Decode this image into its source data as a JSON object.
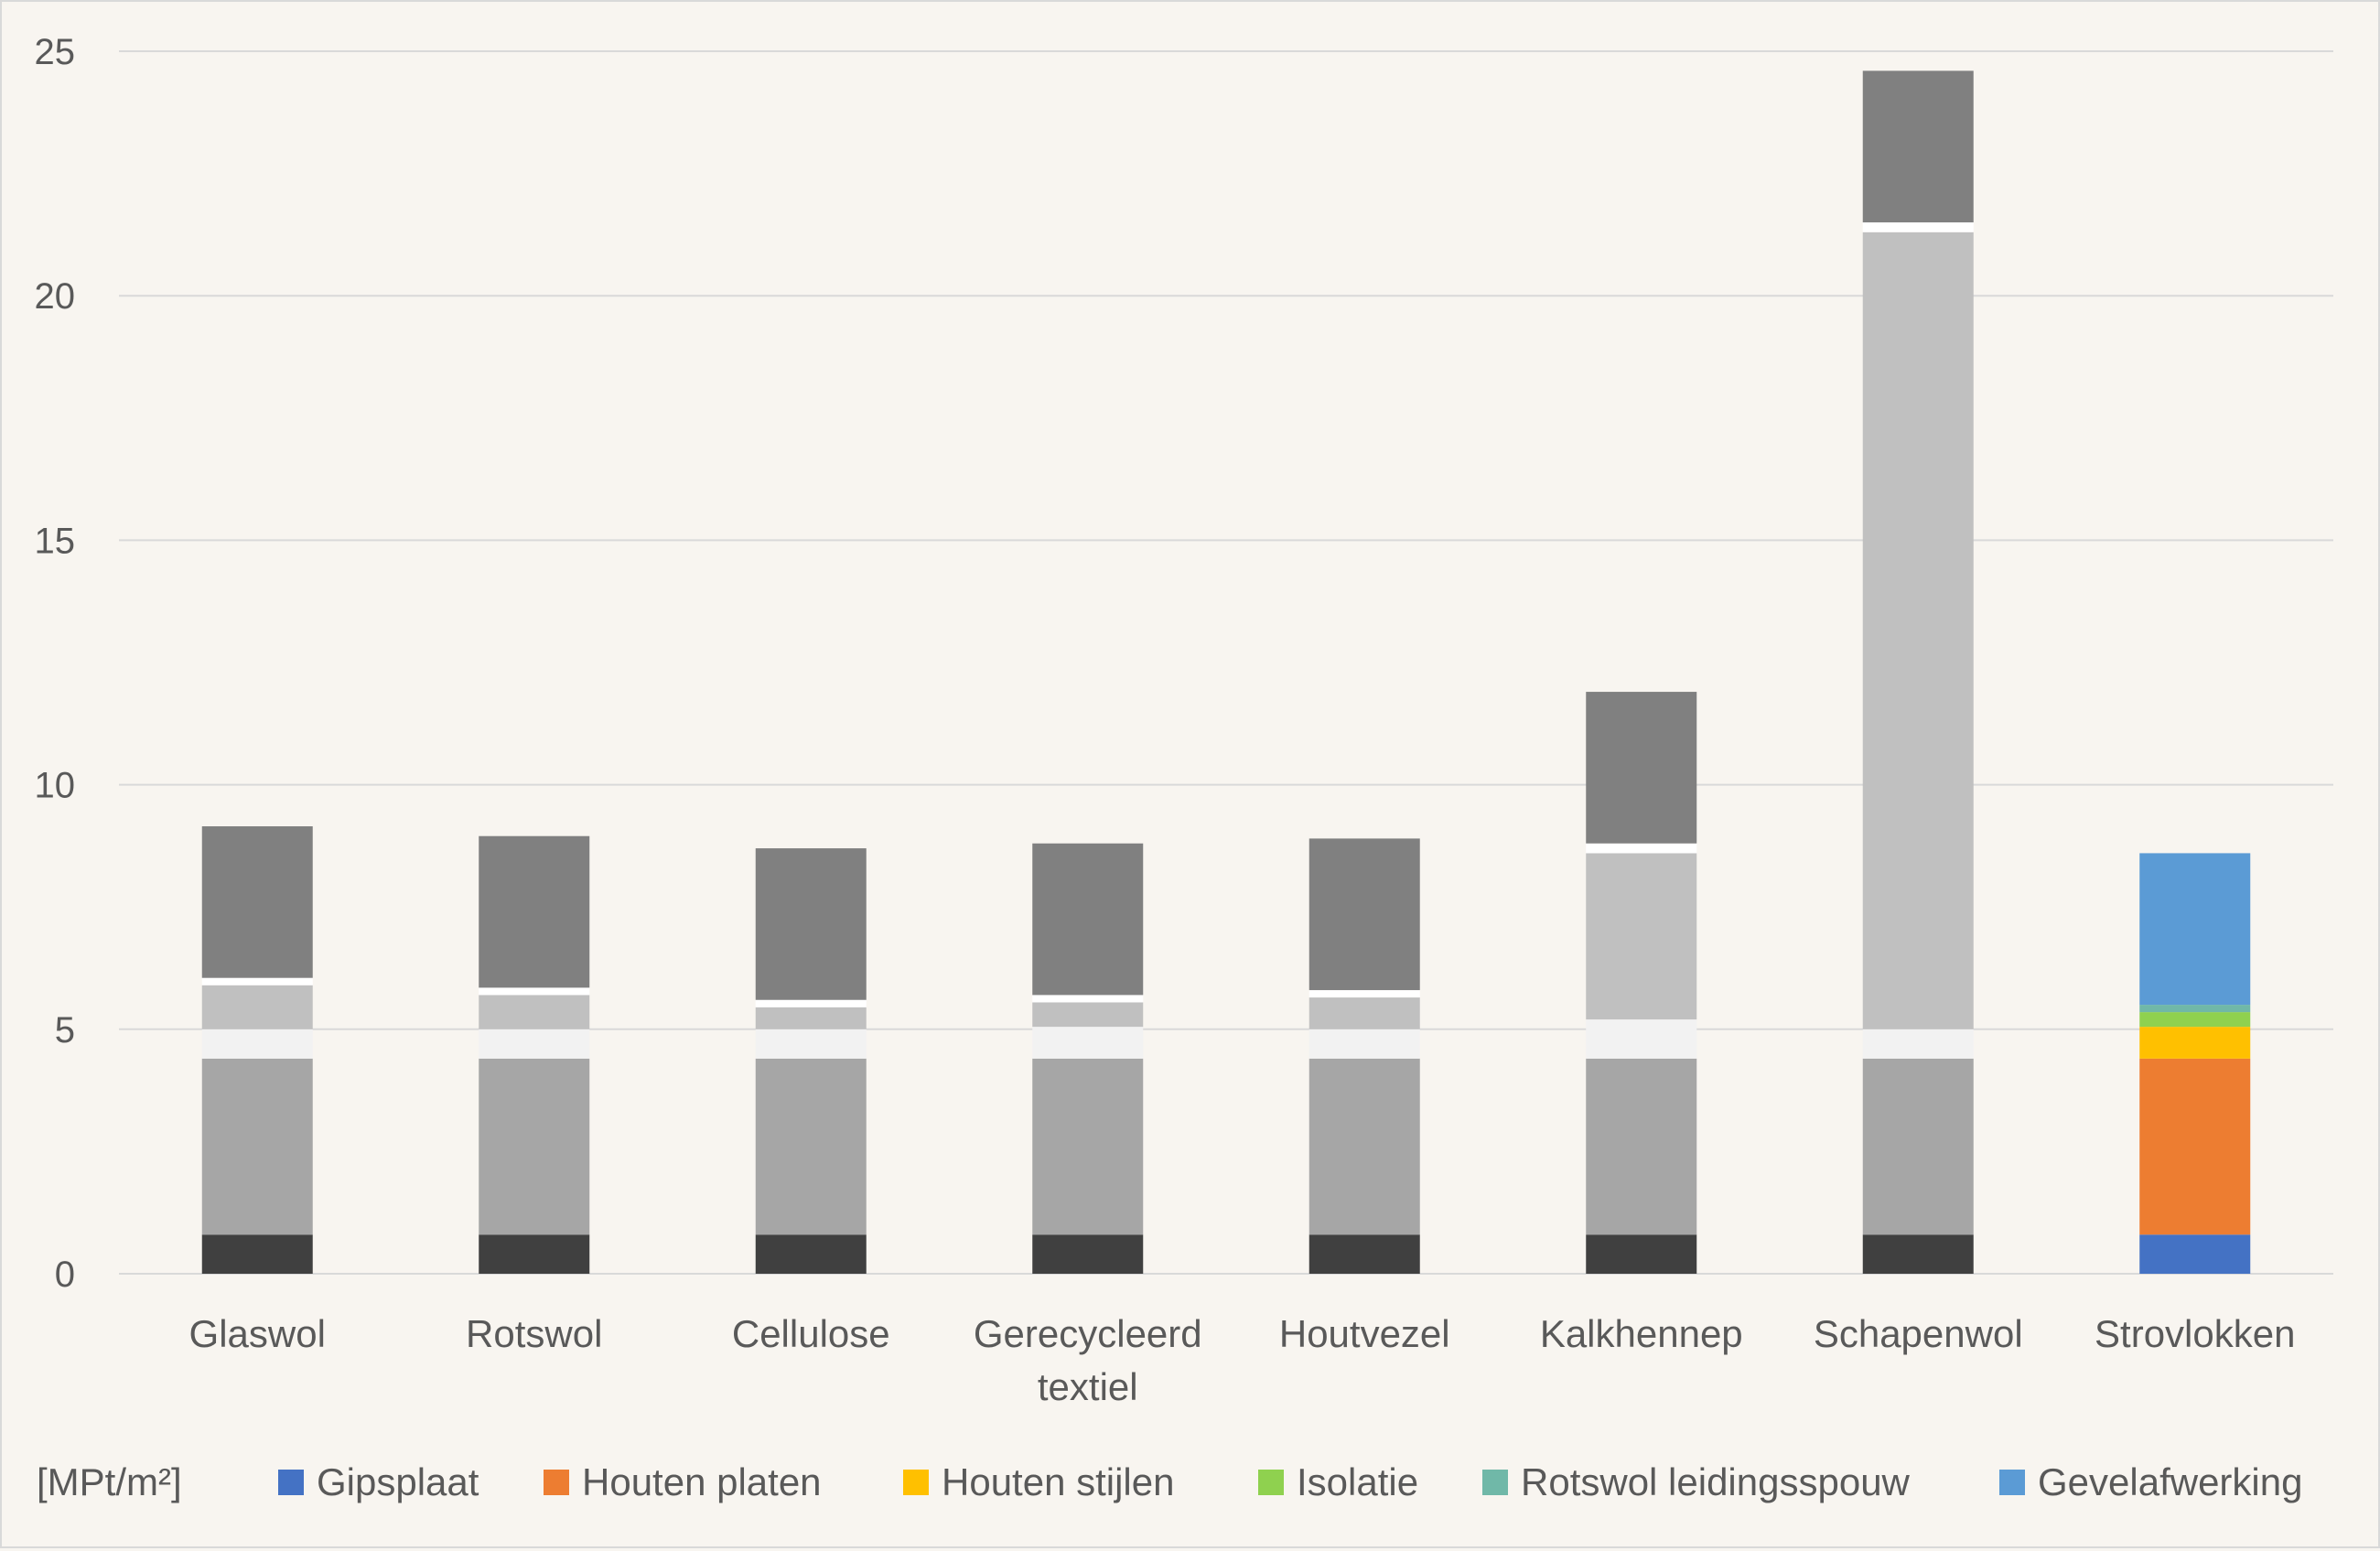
{
  "chart_data": {
    "type": "bar",
    "stacked": true,
    "title": "",
    "xlabel": "",
    "ylabel": "",
    "ylim": [
      0,
      25
    ],
    "yticks": [
      0,
      5,
      10,
      15,
      20,
      25
    ],
    "grid": true,
    "legend_position": "bottom",
    "legend_prefix": "[MPt/m²]",
    "categories": [
      "Glaswol",
      "Rotswol",
      "Cellulose",
      "Gerecycleerd textiel",
      "Houtvezel",
      "Kalkhennep",
      "Schapenwol",
      "Strovlokken"
    ],
    "category_lines": [
      [
        "Glaswol"
      ],
      [
        "Rotswol"
      ],
      [
        "Cellulose"
      ],
      [
        "Gerecycleerd",
        "textiel"
      ],
      [
        "Houtvezel"
      ],
      [
        "Kalkhennep"
      ],
      [
        "Schapenwol"
      ],
      [
        "Strovlokken"
      ]
    ],
    "highlight_category": "Strovlokken",
    "series": [
      {
        "name": "Gipsplaat",
        "color": "#4472c4",
        "gray": "#404040",
        "values": [
          0.8,
          0.8,
          0.8,
          0.8,
          0.8,
          0.8,
          0.8,
          0.8
        ]
      },
      {
        "name": "Houten platen",
        "color": "#ed7d31",
        "gray": "#a6a6a6",
        "values": [
          3.6,
          3.6,
          3.6,
          3.6,
          3.6,
          3.6,
          3.6,
          3.6
        ]
      },
      {
        "name": "Houten stijlen",
        "color": "#ffc000",
        "gray": "#f2f2f2",
        "values": [
          0.6,
          0.6,
          0.6,
          0.65,
          0.6,
          0.8,
          0.6,
          0.65
        ]
      },
      {
        "name": "Isolatie",
        "color": "#8fd14f",
        "gray": "#c0c0c0",
        "values": [
          0.9,
          0.7,
          0.45,
          0.5,
          0.65,
          3.4,
          16.3,
          0.3
        ]
      },
      {
        "name": "Rotswol leidingsspouw",
        "color": "#70b8a8",
        "gray": "#ffffff",
        "values": [
          0.15,
          0.15,
          0.15,
          0.15,
          0.15,
          0.2,
          0.2,
          0.15
        ]
      },
      {
        "name": "Gevelafwerking",
        "color": "#5b9bd5",
        "gray": "#808080",
        "values": [
          3.1,
          3.1,
          3.1,
          3.1,
          3.1,
          3.1,
          3.1,
          3.1
        ]
      }
    ]
  }
}
